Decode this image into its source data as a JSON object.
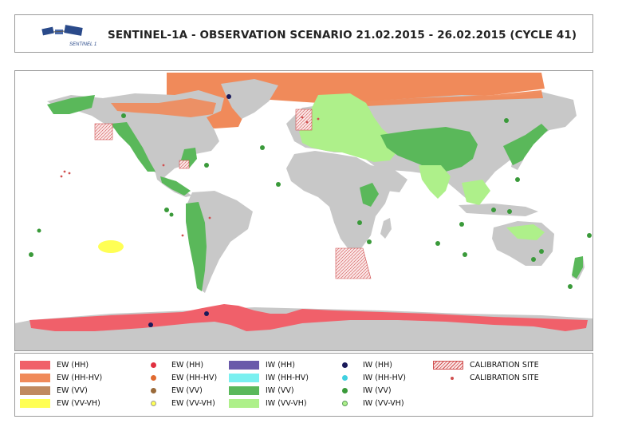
{
  "header": {
    "title": "SENTINEL-1A - OBSERVATION SCENARIO 21.02.2015 - 26.02.2015 (CYCLE 41)",
    "logo_text": "SENTINEL 1"
  },
  "colors": {
    "ocean": "#ffffff",
    "land": "#c8c8c8",
    "ew_hh": "#f0606a",
    "ew_hhhv": "#f08a5a",
    "ew_vv": "#c08a60",
    "ew_vvvh": "#ffff55",
    "iw_hh": "#6a5aaa",
    "iw_hhhv": "#7af0f0",
    "iw_vv": "#5ab85a",
    "iw_vvvh": "#aef08a",
    "dark_dot": "#1a1a5a",
    "calibration": "#d05050"
  },
  "legend": {
    "col1": [
      {
        "label": "EW (HH)",
        "color": "#f0606a"
      },
      {
        "label": "EW (HH-HV)",
        "color": "#f08a5a"
      },
      {
        "label": "EW (VV)",
        "color": "#c08a60"
      },
      {
        "label": "EW (VV-VH)",
        "color": "#ffff55"
      }
    ],
    "col2": [
      {
        "label": "EW (HH)",
        "color": "#e03040"
      },
      {
        "label": "EW (HH-HV)",
        "color": "#e06a30"
      },
      {
        "label": "EW (VV)",
        "color": "#9a6a3a"
      },
      {
        "label": "EW (VV-VH)",
        "color": "#ffff55"
      }
    ],
    "col3": [
      {
        "label": "IW (HH)",
        "color": "#6a5aaa"
      },
      {
        "label": "IW (HH-HV)",
        "color": "#7af0f0"
      },
      {
        "label": "IW (VV)",
        "color": "#5ab85a"
      },
      {
        "label": "IW (VV-VH)",
        "color": "#aef08a"
      }
    ],
    "col4": [
      {
        "label": "IW (HH)",
        "color": "#1a1a5a"
      },
      {
        "label": "IW (HH-HV)",
        "color": "#40d0e0"
      },
      {
        "label": "IW (VV)",
        "color": "#3a9a3a"
      },
      {
        "label": "IW (VV-VH)",
        "color": "#aef08a"
      }
    ],
    "col5": [
      {
        "label": "CALIBRATION SITE",
        "kind": "area"
      },
      {
        "label": "CALIBRATION SITE",
        "kind": "point"
      }
    ]
  }
}
